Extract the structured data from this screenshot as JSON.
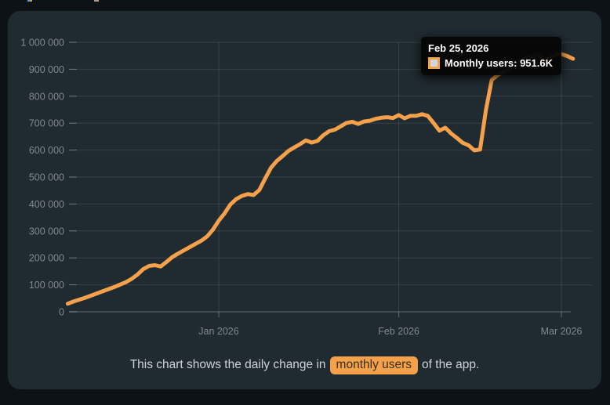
{
  "page": {
    "background": "#0c1216",
    "card_background": "#202b31",
    "top_fragments": [
      {
        "x": 35,
        "colors": [
          "#5e9ad0",
          "#cfa05c"
        ]
      },
      {
        "x": 120,
        "colors": [
          "#96a1ad",
          "#cfa05c"
        ]
      }
    ]
  },
  "tooltip": {
    "date": "Feb 25, 2026",
    "text": "Monthly users: 951.6K",
    "series": "Monthly users",
    "value": "951.6K",
    "background": "#060606",
    "marker_border": "#F5A04A",
    "marker_fill": "#d2d6d9"
  },
  "caption": {
    "prefix": "This chart shows the daily change in",
    "highlight": "monthly users",
    "suffix": "of the app.",
    "text_color": "#cdd4d8",
    "highlight_bg": "#F5A04A",
    "highlight_text": "#38301f"
  },
  "chart_data": {
    "type": "line",
    "title": "",
    "series_name": "Monthly users",
    "line_color": "#F5A04A",
    "line_width": 5,
    "grid": true,
    "legend_position": "none",
    "ylim": [
      0,
      1000000
    ],
    "y_ticks": [
      0,
      100000,
      200000,
      300000,
      400000,
      500000,
      600000,
      700000,
      800000,
      900000,
      1000000
    ],
    "y_tick_labels": [
      "0",
      "100 000",
      "200 000",
      "300 000",
      "400 000",
      "500 000",
      "600 000",
      "700 000",
      "800 000",
      "900 000",
      "1 000 000"
    ],
    "x_tick_dates": [
      "2026-01-01",
      "2026-02-01",
      "2026-03-01"
    ],
    "x_tick_labels": [
      "Jan 2026",
      "Feb 2026",
      "Mar 2026"
    ],
    "grid_color": "rgba(255,255,255,0.10)",
    "axis_color": "rgba(255,255,255,0.30)",
    "label_color": "#7f888e",
    "highlight_point": {
      "date": "2026-02-25",
      "value": 951600
    },
    "x": [
      "2025-12-06",
      "2025-12-07",
      "2025-12-08",
      "2025-12-09",
      "2025-12-10",
      "2025-12-11",
      "2025-12-12",
      "2025-12-13",
      "2025-12-14",
      "2025-12-15",
      "2025-12-16",
      "2025-12-17",
      "2025-12-18",
      "2025-12-19",
      "2025-12-20",
      "2025-12-21",
      "2025-12-22",
      "2025-12-23",
      "2025-12-24",
      "2025-12-25",
      "2025-12-26",
      "2025-12-27",
      "2025-12-28",
      "2025-12-29",
      "2025-12-30",
      "2025-12-31",
      "2026-01-01",
      "2026-01-02",
      "2026-01-03",
      "2026-01-04",
      "2026-01-05",
      "2026-01-06",
      "2026-01-07",
      "2026-01-08",
      "2026-01-09",
      "2026-01-10",
      "2026-01-11",
      "2026-01-12",
      "2026-01-13",
      "2026-01-14",
      "2026-01-15",
      "2026-01-16",
      "2026-01-17",
      "2026-01-18",
      "2026-01-19",
      "2026-01-20",
      "2026-01-21",
      "2026-01-22",
      "2026-01-23",
      "2026-01-24",
      "2026-01-25",
      "2026-01-26",
      "2026-01-27",
      "2026-01-28",
      "2026-01-29",
      "2026-01-30",
      "2026-01-31",
      "2026-02-01",
      "2026-02-02",
      "2026-02-03",
      "2026-02-04",
      "2026-02-05",
      "2026-02-06",
      "2026-02-07",
      "2026-02-08",
      "2026-02-09",
      "2026-02-10",
      "2026-02-11",
      "2026-02-12",
      "2026-02-13",
      "2026-02-14",
      "2026-02-15",
      "2026-02-16",
      "2026-02-17",
      "2026-02-18",
      "2026-02-19",
      "2026-02-20",
      "2026-02-21",
      "2026-02-22",
      "2026-02-23",
      "2026-02-24",
      "2026-02-25",
      "2026-02-26",
      "2026-02-27",
      "2026-02-28",
      "2026-03-01",
      "2026-03-02",
      "2026-03-03"
    ],
    "values": [
      30000,
      38000,
      45000,
      52000,
      60000,
      68000,
      76000,
      84000,
      92000,
      101000,
      110000,
      122000,
      138000,
      158000,
      170000,
      173000,
      168000,
      185000,
      203000,
      216000,
      228000,
      240000,
      252000,
      264000,
      280000,
      305000,
      338000,
      365000,
      398000,
      418000,
      430000,
      437000,
      433000,
      452000,
      495000,
      535000,
      560000,
      578000,
      597000,
      610000,
      622000,
      636000,
      628000,
      634000,
      655000,
      670000,
      676000,
      688000,
      701000,
      705000,
      697000,
      706000,
      709000,
      716000,
      720000,
      722000,
      719000,
      730000,
      718000,
      727000,
      727000,
      733000,
      727000,
      700000,
      672000,
      683000,
      662000,
      645000,
      627000,
      618000,
      599000,
      602000,
      748000,
      860000,
      878000,
      890000,
      902000,
      916000,
      930000,
      944000,
      948000,
      951600,
      937000,
      943000,
      955000,
      956000,
      949000,
      939000
    ]
  }
}
